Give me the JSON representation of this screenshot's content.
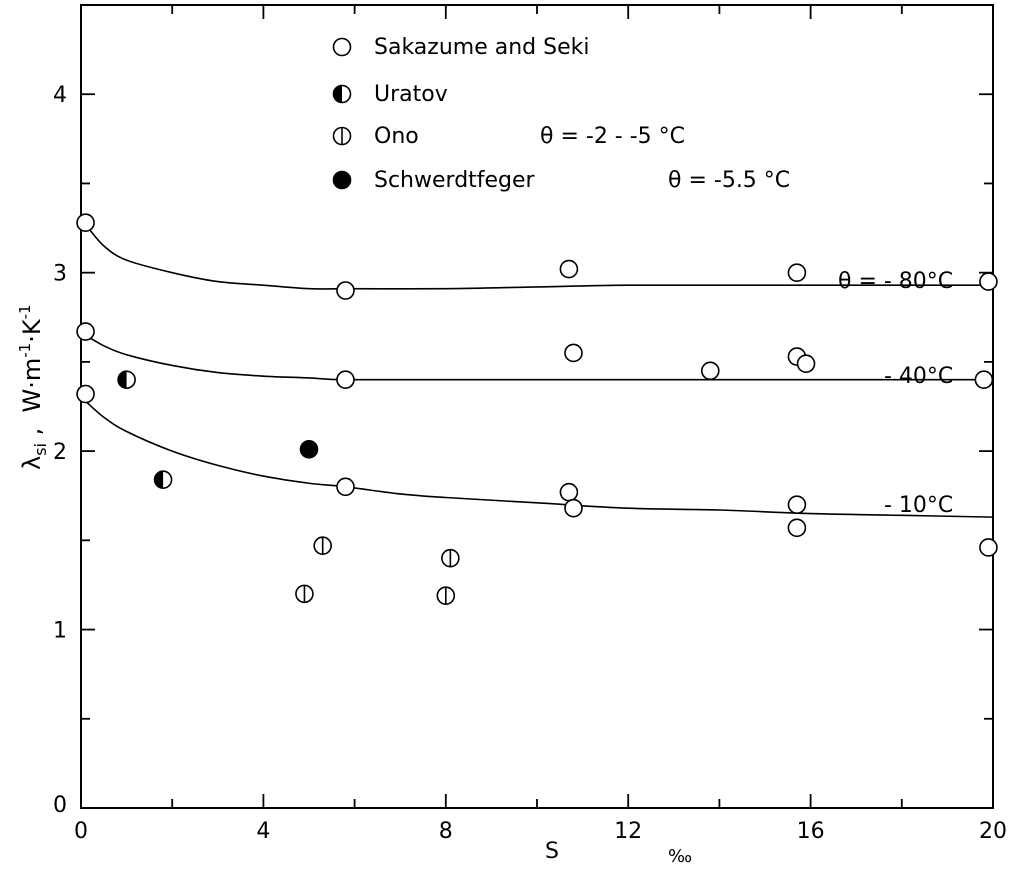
{
  "chart_data": {
    "type": "scatter",
    "xlabel": "S",
    "xunit": "‰",
    "ylabel_main": "λ",
    "ylabel_sub": "si",
    "ylabel_sep": " ,  ",
    "ylabel_unit": "W·m",
    "ylabel_exp1": "-1",
    "ylabel_mid": "·K",
    "ylabel_exp2": "-1",
    "xlim": [
      0,
      20
    ],
    "ylim": [
      0,
      4.5
    ],
    "xticks": [
      0,
      4,
      8,
      12,
      16,
      20
    ],
    "xtick_labels": [
      "0",
      "4",
      "8",
      "12",
      "16",
      "20"
    ],
    "yticks": [
      1,
      2,
      3,
      4
    ],
    "ytick_labels": [
      "1",
      "2",
      "3",
      "4"
    ],
    "origin_y_label": "0",
    "grid": false,
    "legend_position": "top-center",
    "legend": [
      {
        "marker": "open",
        "label": "Sakazume and Seki",
        "condition": ""
      },
      {
        "marker": "half",
        "label": "Uratov",
        "condition": ""
      },
      {
        "marker": "barred",
        "label": "Ono",
        "condition": "θ = -2 - -5 °C"
      },
      {
        "marker": "filled",
        "label": "Schwerdtfeger",
        "condition": "θ = -5.5 °C"
      }
    ],
    "curves": [
      {
        "label": "θ = - 80°C",
        "x": [
          0.1,
          0.5,
          1,
          2,
          3,
          4,
          5,
          5.8,
          8,
          10,
          12,
          15,
          20
        ],
        "y": [
          3.27,
          3.15,
          3.07,
          3.0,
          2.95,
          2.93,
          2.91,
          2.91,
          2.91,
          2.92,
          2.93,
          2.93,
          2.93
        ]
      },
      {
        "label": "- 40°C",
        "x": [
          0.1,
          0.5,
          1,
          2,
          3,
          4,
          5,
          5.8,
          8,
          12,
          16,
          20
        ],
        "y": [
          2.65,
          2.59,
          2.54,
          2.48,
          2.44,
          2.42,
          2.41,
          2.4,
          2.4,
          2.4,
          2.4,
          2.4
        ]
      },
      {
        "label": "- 10°C",
        "x": [
          0.1,
          0.5,
          1,
          2,
          3,
          4,
          5,
          5.8,
          7,
          8,
          10,
          12,
          14,
          16,
          18,
          20
        ],
        "y": [
          2.28,
          2.19,
          2.11,
          2.0,
          1.92,
          1.86,
          1.82,
          1.8,
          1.76,
          1.74,
          1.71,
          1.68,
          1.67,
          1.65,
          1.64,
          1.63
        ]
      }
    ],
    "series": [
      {
        "name": "Sakazume and Seki",
        "marker": "open",
        "points": [
          [
            0.1,
            3.28
          ],
          [
            5.8,
            2.9
          ],
          [
            10.7,
            3.02
          ],
          [
            15.7,
            3.0
          ],
          [
            19.9,
            2.95
          ],
          [
            0.1,
            2.67
          ],
          [
            5.8,
            2.4
          ],
          [
            10.8,
            2.55
          ],
          [
            13.8,
            2.45
          ],
          [
            15.7,
            2.53
          ],
          [
            15.9,
            2.49
          ],
          [
            19.8,
            2.4
          ],
          [
            0.1,
            2.32
          ],
          [
            5.8,
            1.8
          ],
          [
            10.7,
            1.77
          ],
          [
            10.8,
            1.68
          ],
          [
            15.7,
            1.7
          ],
          [
            15.7,
            1.57
          ],
          [
            19.9,
            1.46
          ]
        ]
      },
      {
        "name": "Uratov",
        "marker": "half",
        "points": [
          [
            1.0,
            2.4
          ],
          [
            1.8,
            1.84
          ]
        ]
      },
      {
        "name": "Ono",
        "marker": "barred",
        "points": [
          [
            4.9,
            1.2
          ],
          [
            5.3,
            1.47
          ],
          [
            8.0,
            1.19
          ],
          [
            8.1,
            1.4
          ]
        ]
      },
      {
        "name": "Schwerdtfeger",
        "marker": "filled",
        "points": [
          [
            5.0,
            2.01
          ]
        ]
      }
    ]
  }
}
